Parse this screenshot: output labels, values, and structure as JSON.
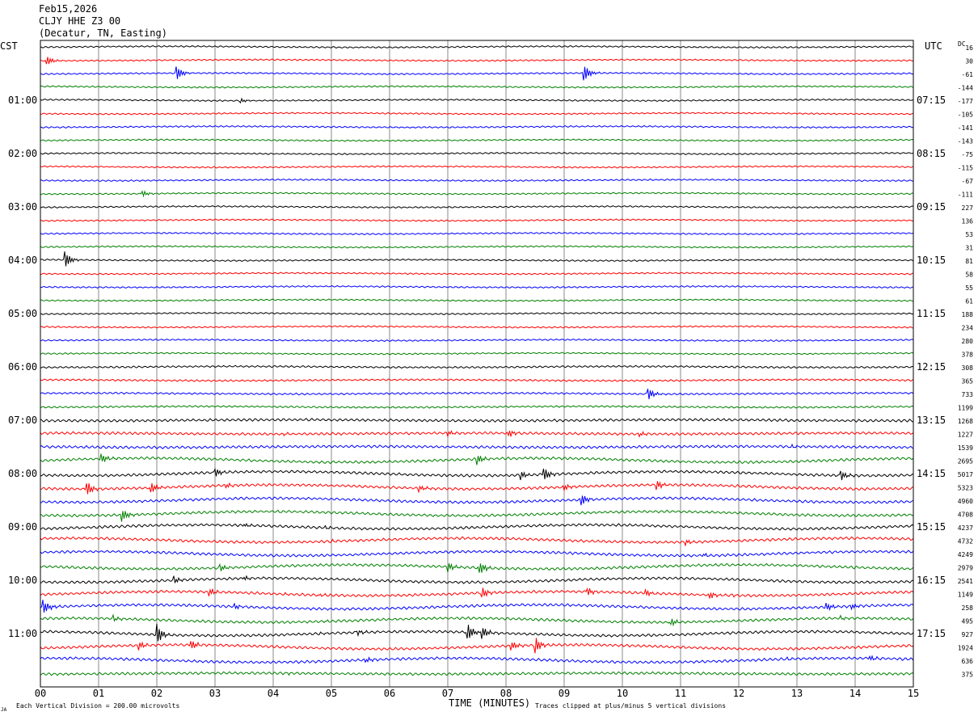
{
  "header": {
    "date": "Feb15,2026",
    "station": "CLJY HHE Z3 00",
    "location": "(Decatur, TN, Easting)"
  },
  "footer": {
    "scale": "Each Vertical Division =  200.00 microvolts",
    "clip": "Traces clipped at plus/minus 5 vertical divisions",
    "logo": "JA"
  },
  "chart_data": {
    "type": "line",
    "title": "",
    "xlabel": "TIME (MINUTES)",
    "ylabel_left": "CST",
    "ylabel_right": "UTC",
    "dc_label": "DC",
    "x_range": [
      0,
      15
    ],
    "x_ticks": [
      "00",
      "01",
      "02",
      "03",
      "04",
      "05",
      "06",
      "07",
      "08",
      "09",
      "10",
      "11",
      "12",
      "13",
      "14",
      "15"
    ],
    "grid": "vertical lines every minute",
    "trace_colors": [
      "#000000",
      "#ff0000",
      "#0000ff",
      "#008000"
    ],
    "left_hour_labels": [
      "01:00",
      "02:00",
      "03:00",
      "04:00",
      "05:00",
      "06:00",
      "07:00",
      "08:00",
      "09:00",
      "10:00",
      "11:00"
    ],
    "right_hour_labels": [
      "07:15",
      "08:15",
      "09:15",
      "10:15",
      "11:15",
      "12:15",
      "13:15",
      "14:15",
      "15:15",
      "16:15",
      "17:15"
    ],
    "first_label_row": 4,
    "rows_per_hour": 4,
    "dc_offsets": [
      16,
      30,
      -61,
      -144,
      -177,
      -105,
      -141,
      -143,
      -75,
      -115,
      -67,
      -111,
      227,
      136,
      53,
      31,
      81,
      58,
      55,
      61,
      188,
      234,
      280,
      378,
      308,
      365,
      733,
      1199,
      1268,
      1227,
      1539,
      2695,
      5017,
      5323,
      4960,
      4708,
      4237,
      4732,
      4249,
      2979,
      2541,
      1149,
      258,
      495,
      927,
      1924,
      636,
      375
    ],
    "events": [
      {
        "row": 1,
        "minute": 0.12,
        "amp": 0.3
      },
      {
        "row": 2,
        "minute": 2.35,
        "amp": 0.6
      },
      {
        "row": 2,
        "minute": 9.35,
        "amp": 0.6
      },
      {
        "row": 4,
        "minute": 3.45,
        "amp": 0.35
      },
      {
        "row": 11,
        "minute": 1.75,
        "amp": 0.25
      },
      {
        "row": 16,
        "minute": 0.42,
        "amp": 0.6
      },
      {
        "row": 26,
        "minute": 10.45,
        "amp": 0.6
      },
      {
        "row": 27,
        "minute": 4.55,
        "amp": 0.2
      },
      {
        "row": 29,
        "minute": 4.2,
        "amp": 0.4
      },
      {
        "row": 29,
        "minute": 7.0,
        "amp": 0.2
      },
      {
        "row": 29,
        "minute": 8.05,
        "amp": 0.25
      },
      {
        "row": 29,
        "minute": 10.3,
        "amp": 0.2
      },
      {
        "row": 30,
        "minute": 12.9,
        "amp": 0.4
      },
      {
        "row": 31,
        "minute": 1.05,
        "amp": 0.35
      },
      {
        "row": 31,
        "minute": 7.5,
        "amp": 0.4
      },
      {
        "row": 32,
        "minute": 3.0,
        "amp": 0.55
      },
      {
        "row": 32,
        "minute": 8.25,
        "amp": 0.3
      },
      {
        "row": 32,
        "minute": 8.65,
        "amp": 0.5
      },
      {
        "row": 32,
        "minute": 13.75,
        "amp": 0.6
      },
      {
        "row": 33,
        "minute": 0.8,
        "amp": 0.5
      },
      {
        "row": 33,
        "minute": 1.9,
        "amp": 0.45
      },
      {
        "row": 33,
        "minute": 3.2,
        "amp": 0.3
      },
      {
        "row": 33,
        "minute": 6.5,
        "amp": 0.3
      },
      {
        "row": 33,
        "minute": 9.0,
        "amp": 0.25
      },
      {
        "row": 33,
        "minute": 10.6,
        "amp": 0.45
      },
      {
        "row": 34,
        "minute": 4.25,
        "amp": 0.4
      },
      {
        "row": 34,
        "minute": 9.3,
        "amp": 0.45
      },
      {
        "row": 35,
        "minute": 1.4,
        "amp": 0.5
      },
      {
        "row": 35,
        "minute": 4.1,
        "amp": 0.3
      },
      {
        "row": 36,
        "minute": 3.5,
        "amp": 0.3
      },
      {
        "row": 36,
        "minute": 4.9,
        "amp": 0.55
      },
      {
        "row": 37,
        "minute": 5.0,
        "amp": 0.3
      },
      {
        "row": 37,
        "minute": 11.1,
        "amp": 0.35
      },
      {
        "row": 38,
        "minute": 11.4,
        "amp": 0.35
      },
      {
        "row": 39,
        "minute": 3.1,
        "amp": 0.4
      },
      {
        "row": 39,
        "minute": 7.0,
        "amp": 0.4
      },
      {
        "row": 39,
        "minute": 7.55,
        "amp": 0.45
      },
      {
        "row": 40,
        "minute": 2.3,
        "amp": 0.3
      },
      {
        "row": 40,
        "minute": 3.5,
        "amp": 0.35
      },
      {
        "row": 41,
        "minute": 2.9,
        "amp": 0.45
      },
      {
        "row": 41,
        "minute": 4.2,
        "amp": 0.3
      },
      {
        "row": 41,
        "minute": 4.8,
        "amp": 0.55
      },
      {
        "row": 41,
        "minute": 7.6,
        "amp": 0.35
      },
      {
        "row": 41,
        "minute": 9.4,
        "amp": 0.3
      },
      {
        "row": 41,
        "minute": 10.4,
        "amp": 0.35
      },
      {
        "row": 41,
        "minute": 11.5,
        "amp": 0.9
      },
      {
        "row": 41,
        "minute": 11.9,
        "amp": 0.5
      },
      {
        "row": 42,
        "minute": 0.05,
        "amp": 0.5
      },
      {
        "row": 42,
        "minute": 3.35,
        "amp": 0.4
      },
      {
        "row": 42,
        "minute": 13.5,
        "amp": 0.6
      },
      {
        "row": 42,
        "minute": 13.95,
        "amp": 0.3
      },
      {
        "row": 43,
        "minute": 1.25,
        "amp": 0.2
      },
      {
        "row": 43,
        "minute": 4.9,
        "amp": 0.3
      },
      {
        "row": 43,
        "minute": 10.85,
        "amp": 0.4
      },
      {
        "row": 43,
        "minute": 13.75,
        "amp": 0.2
      },
      {
        "row": 44,
        "minute": 2.0,
        "amp": 0.9
      },
      {
        "row": 44,
        "minute": 4.8,
        "amp": 0.45
      },
      {
        "row": 44,
        "minute": 5.45,
        "amp": 0.4
      },
      {
        "row": 44,
        "minute": 7.35,
        "amp": 0.6
      },
      {
        "row": 44,
        "minute": 7.6,
        "amp": 0.4
      },
      {
        "row": 45,
        "minute": 1.7,
        "amp": 0.3
      },
      {
        "row": 45,
        "minute": 2.6,
        "amp": 0.45
      },
      {
        "row": 45,
        "minute": 8.1,
        "amp": 0.3
      },
      {
        "row": 45,
        "minute": 8.5,
        "amp": 0.6
      },
      {
        "row": 46,
        "minute": 4.35,
        "amp": 0.3
      },
      {
        "row": 46,
        "minute": 5.6,
        "amp": 0.35
      },
      {
        "row": 46,
        "minute": 12.85,
        "amp": 0.25
      },
      {
        "row": 46,
        "minute": 14.25,
        "amp": 0.25
      },
      {
        "row": 47,
        "minute": 4.25,
        "amp": 0.6
      }
    ]
  }
}
